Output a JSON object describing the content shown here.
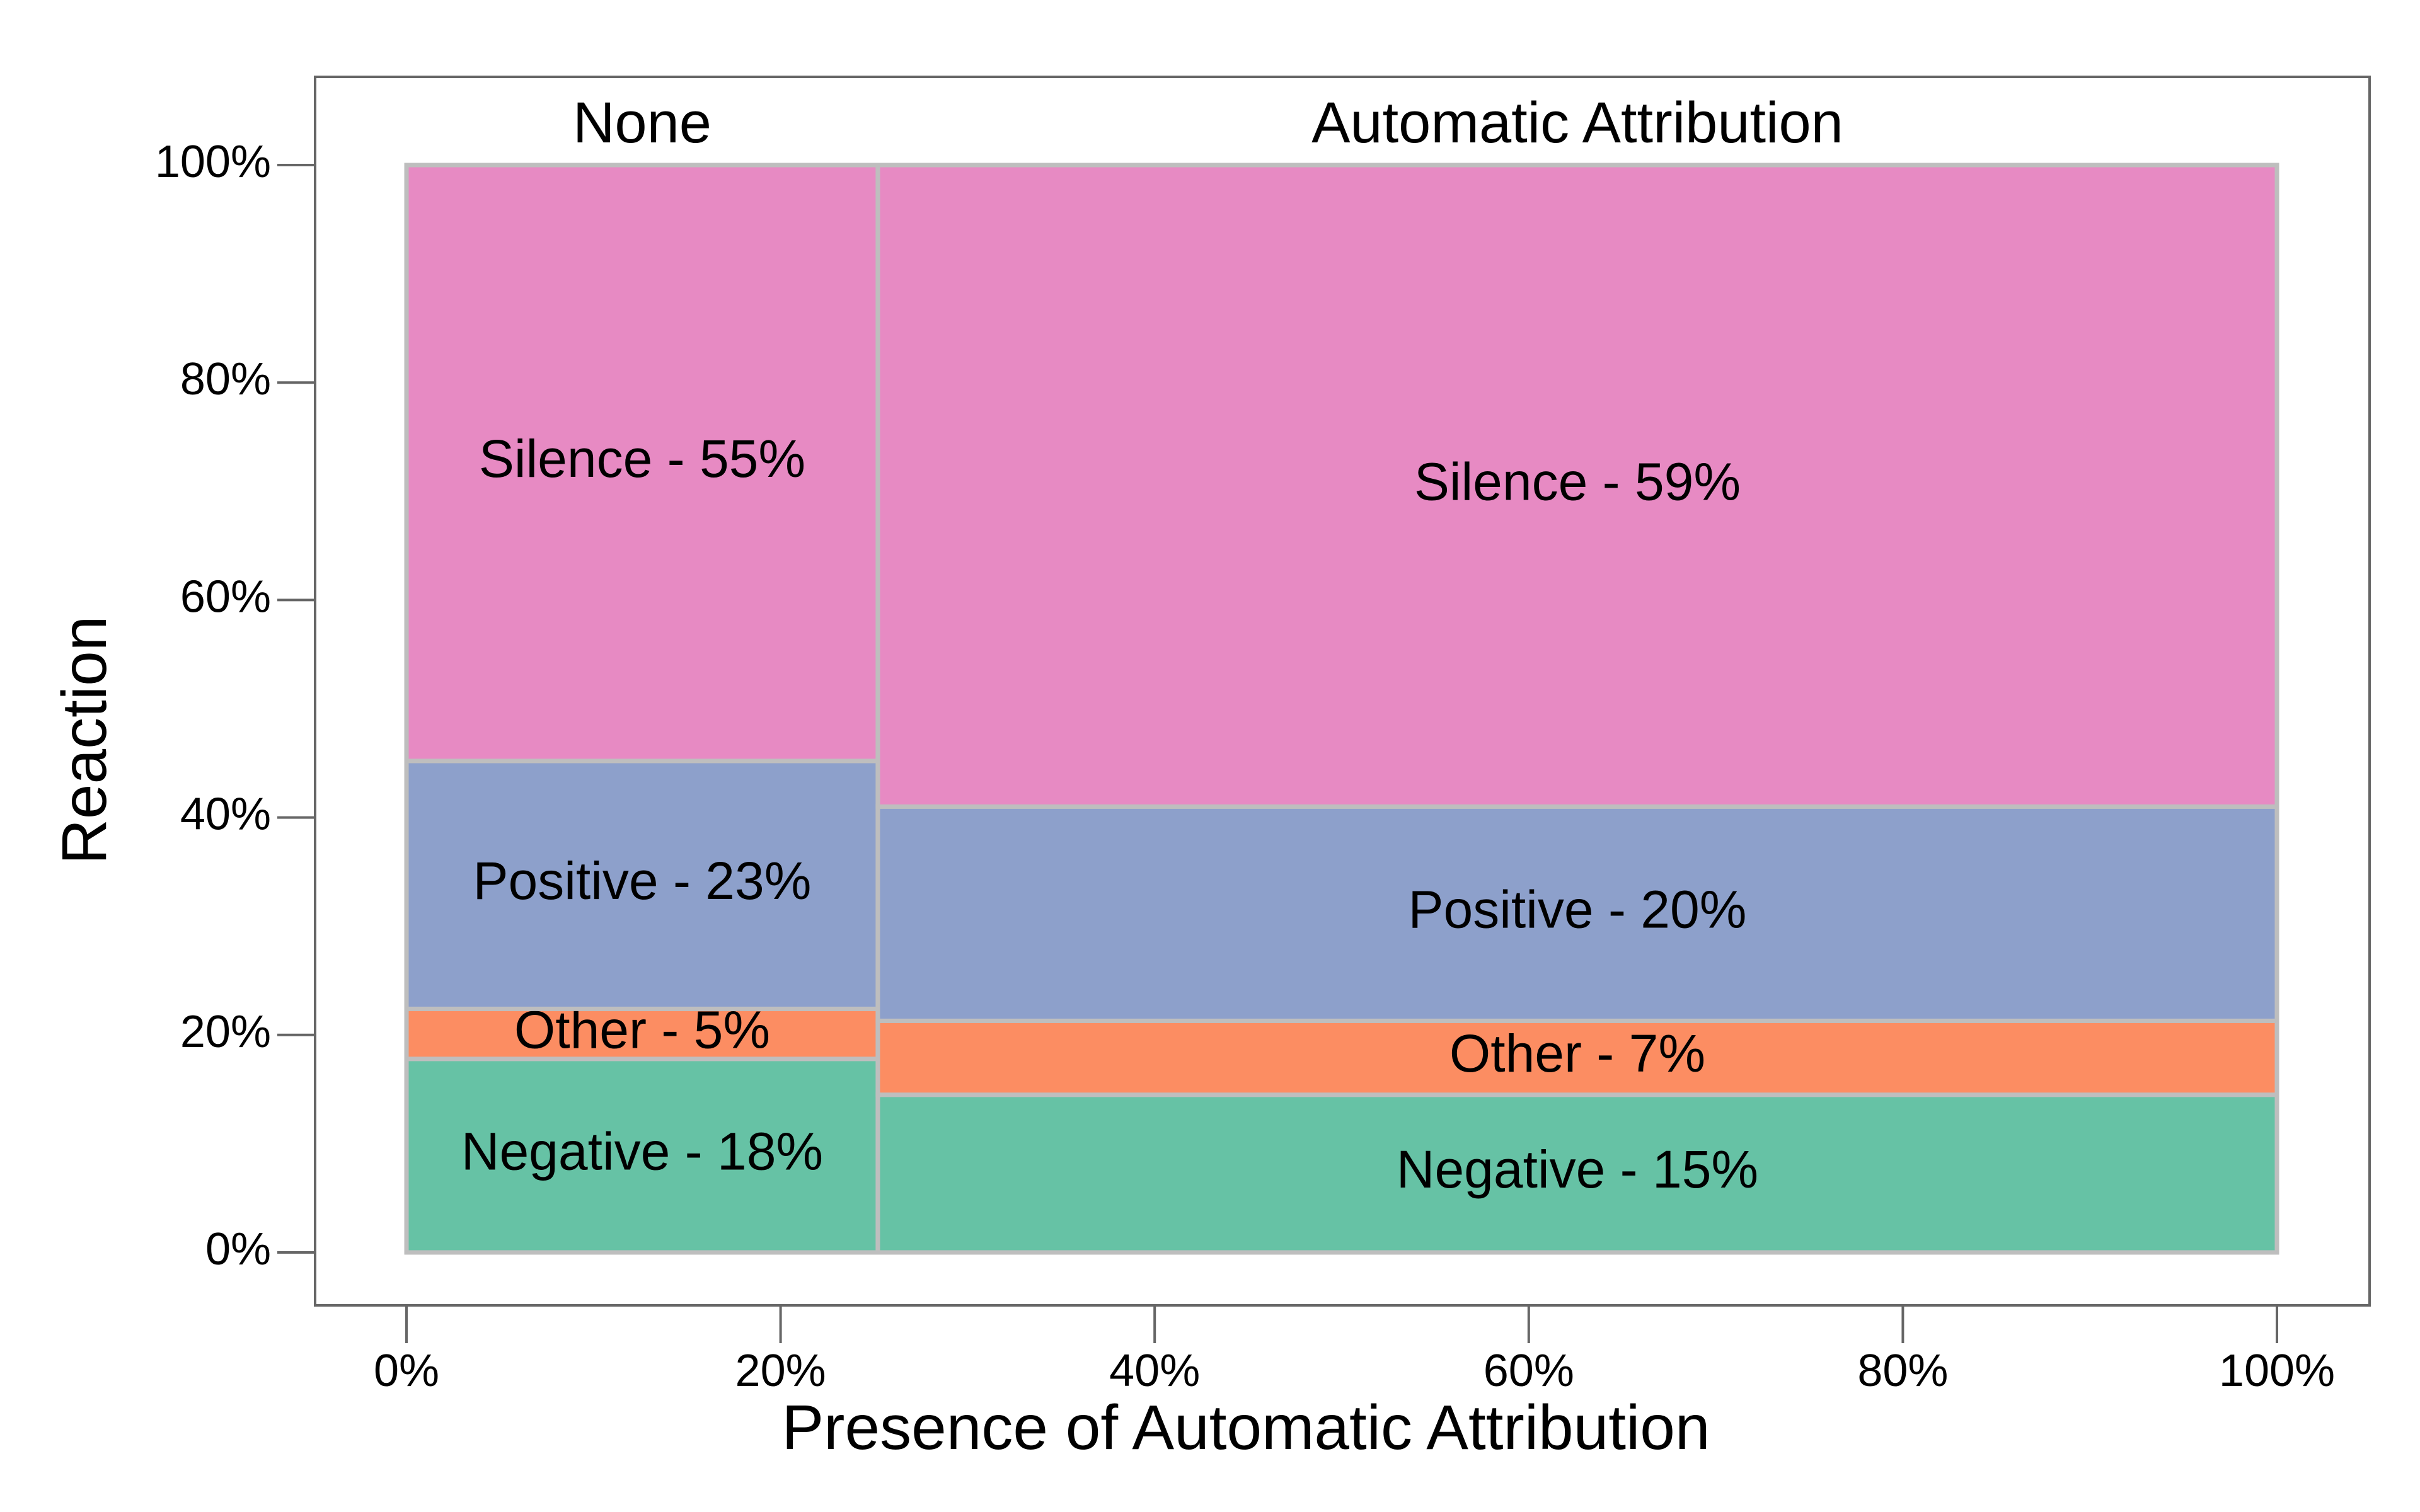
{
  "chart_data": {
    "type": "mosaic",
    "xlabel": "Presence of Automatic Attribution",
    "ylabel": "Reaction",
    "x_ticks": [
      "0%",
      "20%",
      "40%",
      "60%",
      "80%",
      "100%"
    ],
    "y_ticks": [
      "0%",
      "20%",
      "40%",
      "60%",
      "80%",
      "100%"
    ],
    "xlim": [
      0,
      100
    ],
    "ylim": [
      0,
      100
    ],
    "grid": false,
    "columns": [
      {
        "name": "None",
        "width_pct": 25.2,
        "segments": [
          {
            "category": "Negative",
            "value": 17.8,
            "label": "Negative - 18%"
          },
          {
            "category": "Other",
            "value": 4.6,
            "label": "Other - 5%"
          },
          {
            "category": "Positive",
            "value": 22.8,
            "label": "Positive - 23%"
          },
          {
            "category": "Silence",
            "value": 54.8,
            "label": "Silence - 55%"
          }
        ]
      },
      {
        "name": "Automatic Attribution",
        "width_pct": 74.8,
        "segments": [
          {
            "category": "Negative",
            "value": 14.5,
            "label": "Negative - 15%"
          },
          {
            "category": "Other",
            "value": 6.8,
            "label": "Other - 7%"
          },
          {
            "category": "Positive",
            "value": 19.7,
            "label": "Positive - 20%"
          },
          {
            "category": "Silence",
            "value": 59.0,
            "label": "Silence - 59%"
          }
        ]
      }
    ],
    "colors": {
      "Negative": "#66c2a5",
      "Other": "#fc8d62",
      "Positive": "#8da0cb",
      "Silence": "#e78ac3"
    },
    "border_color": "#bebebe",
    "frame_color": "#666666"
  }
}
